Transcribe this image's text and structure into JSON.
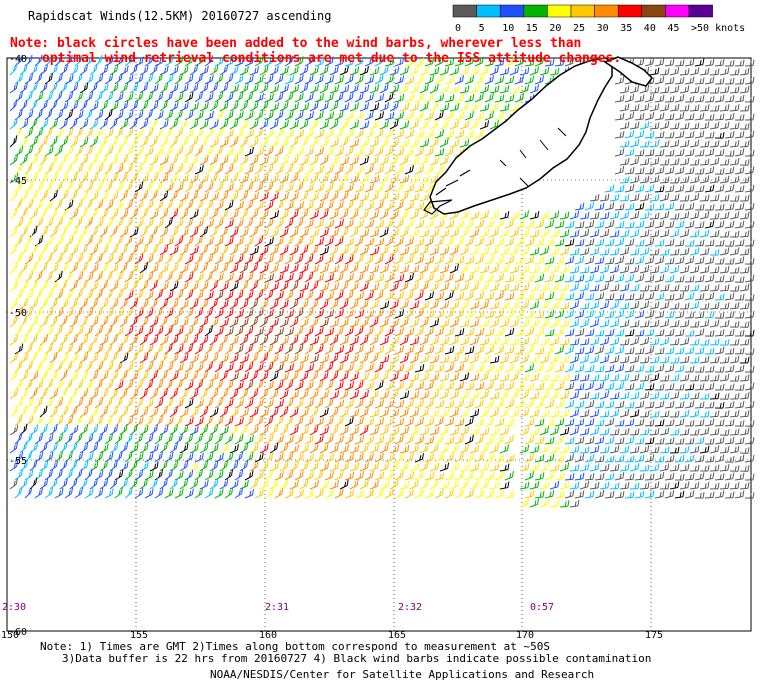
{
  "title": "Rapidscat Winds(12.5KM) 20160727 ascending",
  "note": {
    "line1": "Note: black circles have been added to the wind barbs, wherever less than",
    "line2": "optimal wind retrieval conditions are met due to the ISS attitude changes.",
    "color": "#ff0000"
  },
  "legend": {
    "labels": [
      "0",
      "5",
      "10",
      "15",
      "20",
      "25",
      "30",
      "35",
      "40",
      "45",
      ">50 knots"
    ],
    "colors": [
      "#5a5a5a",
      "#00bfff",
      "#1e50ff",
      "#00b400",
      "#ffff00",
      "#ffc800",
      "#ff8c00",
      "#ff0000",
      "#8b4513",
      "#ff00ff",
      "#5a0096"
    ]
  },
  "axes": {
    "lat_labels": [
      "-40",
      "-45",
      "-50",
      "-55",
      "-60"
    ],
    "lon_labels": [
      "150",
      "155",
      "160",
      "165",
      "170",
      "175"
    ]
  },
  "times": [
    "2:30",
    "2:31",
    "2:32",
    "0:57"
  ],
  "time_color": "#800080",
  "footer": {
    "line1": "Note: 1) Times are GMT 2)Times along bottom correspond to measurement at ~50S",
    "line2": "3)Data buffer is 22 hrs from 20160727 4) Black wind barbs indicate possible contamination",
    "line3": "NOAA/NESDIS/Center for Satellite Applications and Research"
  }
}
